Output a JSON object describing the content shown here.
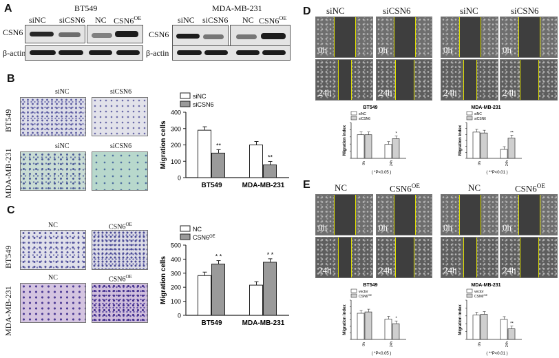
{
  "panels": {
    "A": "A",
    "B": "B",
    "C": "C",
    "D": "D",
    "E": "E"
  },
  "panelA": {
    "cell_line_left": "BT549",
    "cell_line_right": "MDA-MB-231",
    "lanes": [
      "siNC",
      "siCSN6",
      "NC",
      "CSN6"
    ],
    "oe_sup": "OE",
    "rows": [
      "CSN6",
      "β-actin"
    ]
  },
  "panelB": {
    "img_labels": [
      "siNC",
      "siCSN6",
      "siNC",
      "siCSN6"
    ],
    "row_labels": [
      "BT549",
      "MDA-MB-231"
    ]
  },
  "panelC": {
    "img_labels": [
      "NC",
      "CSN6",
      "NC",
      "CSN6"
    ],
    "oe_sup": "OE",
    "row_labels": [
      "BT549",
      "MDA-MB-231"
    ]
  },
  "panelD": {
    "col_labels": [
      "siNC",
      "siCSN6",
      "siNC",
      "siCSN6"
    ],
    "time_labels": [
      "0h",
      "0h",
      "0h",
      "0h",
      "24h",
      "24h",
      "24h",
      "24h"
    ]
  },
  "panelE": {
    "col_labels": [
      "NC",
      "CSN6",
      "NC",
      "CSN6"
    ],
    "oe_sup": "OE",
    "time_labels": [
      "0h",
      "0h",
      "0h",
      "0h",
      "24h",
      "24h",
      "24h",
      "24h"
    ]
  },
  "chart_data": [
    {
      "id": "B-chart",
      "type": "bar",
      "categories": [
        "BT549",
        "MDA-MB-231"
      ],
      "series": [
        {
          "name": "siNC",
          "values": [
            290,
            200
          ],
          "color": "#ffffff"
        },
        {
          "name": "siCSN6",
          "values": [
            150,
            78
          ],
          "color": "#9a9a9a"
        }
      ],
      "ylabel": "Migration cells",
      "ylim": [
        0,
        400
      ],
      "yticks": [
        0,
        100,
        200,
        300,
        400
      ],
      "annotations": [
        "**",
        "**"
      ],
      "legend": "top-left"
    },
    {
      "id": "C-chart",
      "type": "bar",
      "categories": [
        "BT549",
        "MDA-MB-231"
      ],
      "series": [
        {
          "name": "NC",
          "values": [
            283,
            215
          ],
          "color": "#ffffff"
        },
        {
          "name": "CSN6",
          "values": [
            365,
            378
          ],
          "color": "#9a9a9a"
        }
      ],
      "ylabel": "Migration cells",
      "ylim": [
        0,
        500
      ],
      "yticks": [
        0,
        100,
        200,
        300,
        400,
        500
      ],
      "annotations": [
        "* *",
        "* *"
      ],
      "legend": "top-left",
      "oe_sup": "OE"
    },
    {
      "id": "D1",
      "type": "bar",
      "title": "BT549",
      "categories": [
        "0h",
        "24h"
      ],
      "series": [
        {
          "name": "siNC",
          "values": [
            330,
            195
          ]
        },
        {
          "name": "siCSN6",
          "values": [
            330,
            275
          ]
        }
      ],
      "ylabel": "Migration index",
      "ylim": [
        0,
        500
      ],
      "annotations": [
        "",
        "*"
      ],
      "footnote": "( *P<0.05 )"
    },
    {
      "id": "D2",
      "type": "bar",
      "title": "MDA-MB-231",
      "categories": [
        "0h",
        "24h"
      ],
      "series": [
        {
          "name": "siNC",
          "values": [
            440,
            150
          ]
        },
        {
          "name": "siCSN6",
          "values": [
            425,
            340
          ]
        }
      ],
      "ylabel": "Migration index",
      "ylim": [
        0,
        600
      ],
      "annotations": [
        "",
        "**"
      ],
      "footnote": "( **P<0.01 )"
    },
    {
      "id": "E1",
      "type": "bar",
      "title": "BT549",
      "categories": [
        "0h",
        "24h"
      ],
      "series": [
        {
          "name": "vector",
          "values": [
            400,
            310
          ]
        },
        {
          "name": "CSN6",
          "values": [
            420,
            240
          ]
        }
      ],
      "ylabel": "Migration index",
      "ylim": [
        0,
        600
      ],
      "annotations": [
        "",
        "*"
      ],
      "footnote": "( *P<0.05 )",
      "oe_sup": "OE"
    },
    {
      "id": "E2",
      "type": "bar",
      "title": "MDA-MB-231",
      "categories": [
        "0h",
        "24h"
      ],
      "series": [
        {
          "name": "vector",
          "values": [
            310,
            255
          ]
        },
        {
          "name": "CSN6",
          "values": [
            320,
            135
          ]
        }
      ],
      "ylabel": "Migration index",
      "ylim": [
        0,
        500
      ],
      "annotations": [
        "",
        "**"
      ],
      "footnote": "( **P<0.01 )",
      "oe_sup": "OE"
    }
  ]
}
